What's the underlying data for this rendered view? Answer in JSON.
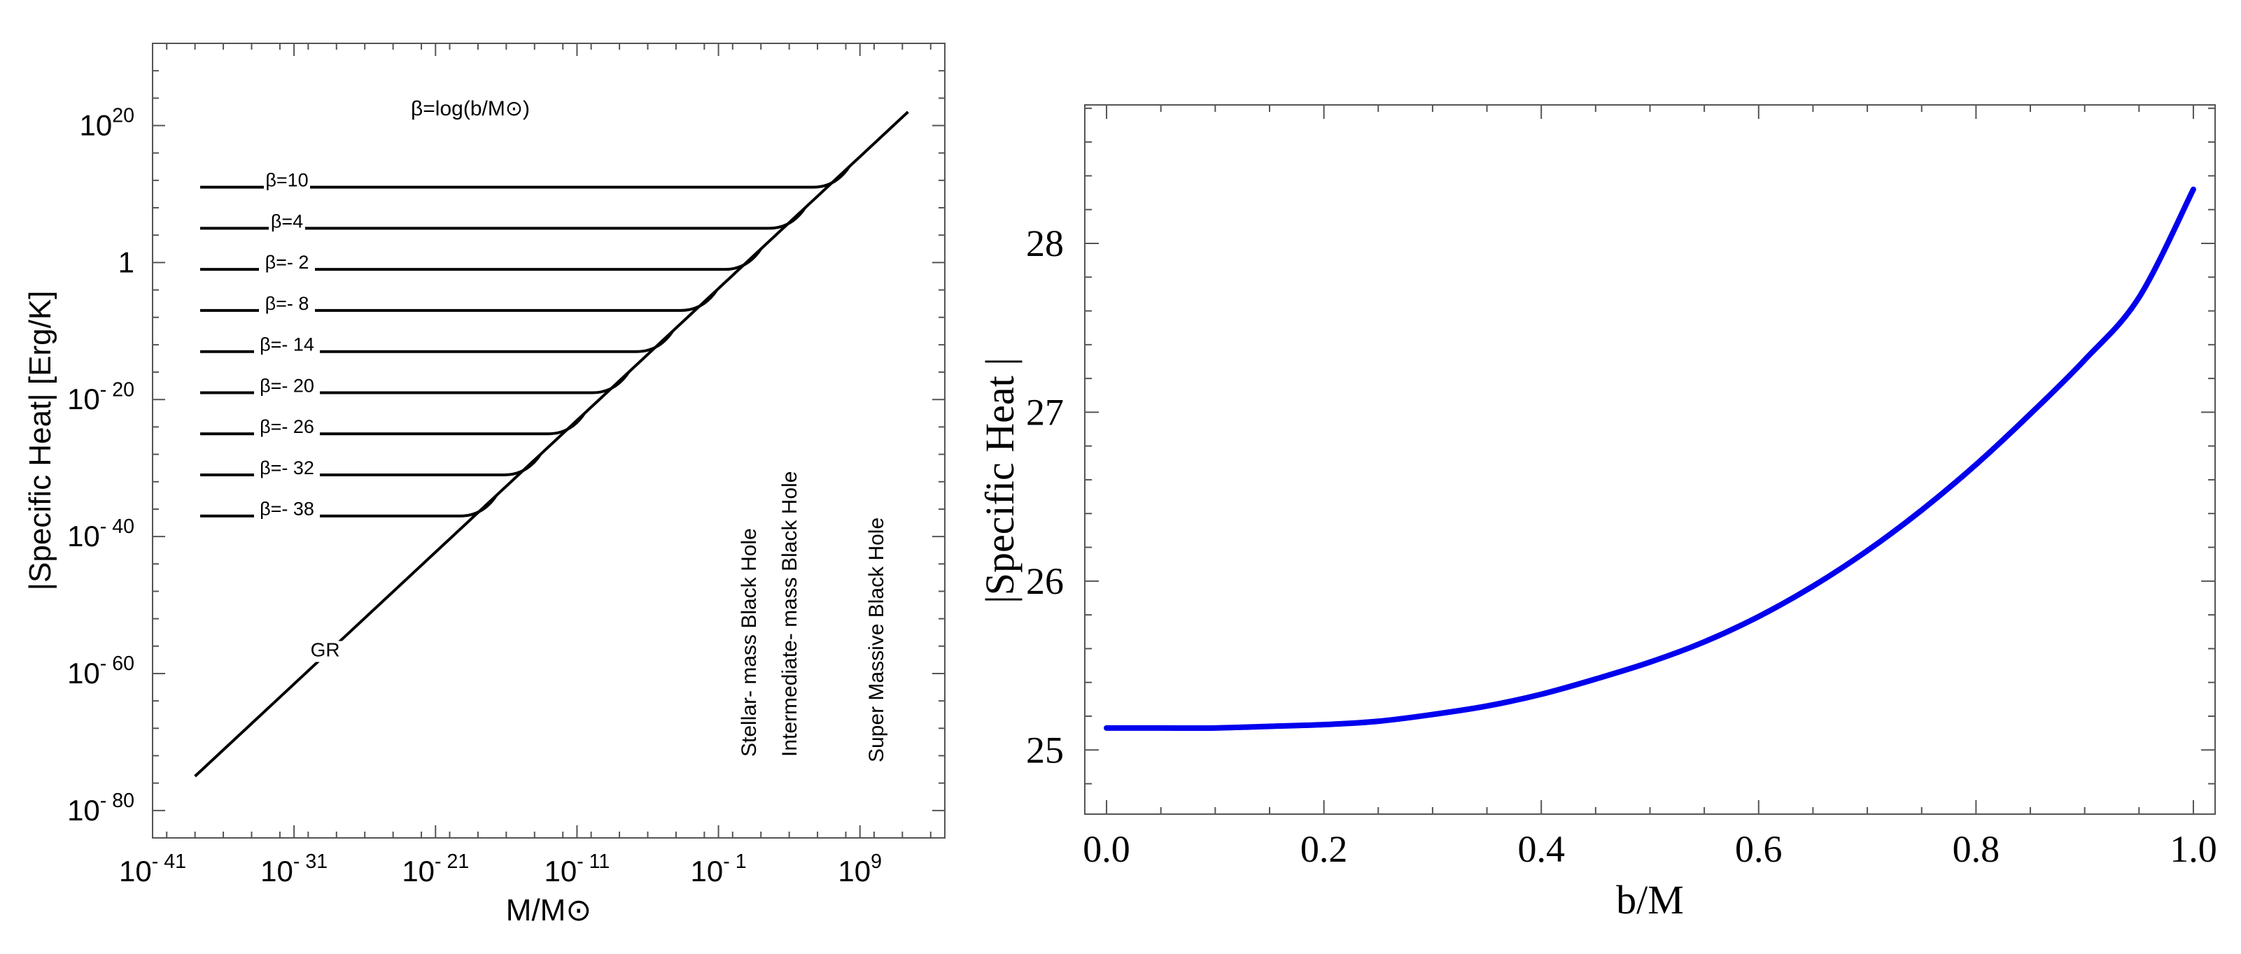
{
  "chart_data": [
    {
      "type": "line",
      "xscale": "log",
      "yscale": "log",
      "xlabel": "M/M⊙",
      "ylabel": "|Specific Heat| [Erg/K]",
      "xlim": [
        1e-41,
        1000000000000000.0
      ],
      "ylim": [
        1e-84,
        1e+32
      ],
      "x_ticks": [
        {
          "exp": -41,
          "label": "10",
          "sup": "- 41"
        },
        {
          "exp": -31,
          "label": "10",
          "sup": "- 31"
        },
        {
          "exp": -21,
          "label": "10",
          "sup": "- 21"
        },
        {
          "exp": -11,
          "label": "10",
          "sup": "- 11"
        },
        {
          "exp": -1,
          "label": "10",
          "sup": "- 1"
        },
        {
          "exp": 9,
          "label": "10",
          "sup": "9"
        }
      ],
      "y_ticks": [
        {
          "exp": 20,
          "label": "10",
          "sup": "20"
        },
        {
          "exp": 0,
          "label": "1",
          "sup": ""
        },
        {
          "exp": -20,
          "label": "10",
          "sup": "- 20"
        },
        {
          "exp": -40,
          "label": "10",
          "sup": "- 40"
        },
        {
          "exp": -60,
          "label": "10",
          "sup": "- 60"
        },
        {
          "exp": -80,
          "label": "10",
          "sup": "- 80"
        }
      ],
      "annotation": "β=log(b/M⊙)",
      "gr_line": {
        "label": "GR",
        "x_exp": [
          -38,
          12.4
        ],
        "y_exp": [
          -75,
          22
        ]
      },
      "series": [
        {
          "name": "β=10",
          "beta": 10,
          "plateau_log_y": 11
        },
        {
          "name": "β=4",
          "beta": 4,
          "plateau_log_y": 5
        },
        {
          "name": "β=- 2",
          "beta": -2,
          "plateau_log_y": -1
        },
        {
          "name": "β=- 8",
          "beta": -8,
          "plateau_log_y": -7
        },
        {
          "name": "β=- 14",
          "beta": -14,
          "plateau_log_y": -13
        },
        {
          "name": "β=- 20",
          "beta": -20,
          "plateau_log_y": -19
        },
        {
          "name": "β=- 26",
          "beta": -26,
          "plateau_log_y": -25
        },
        {
          "name": "β=- 32",
          "beta": -32,
          "plateau_log_y": -31
        },
        {
          "name": "β=- 38",
          "beta": -38,
          "plateau_log_y": -37
        }
      ],
      "region_labels": [
        "Stellar- mass Black Hole",
        "Intermediate- mass Black Hole",
        "Super Massive Black Hole"
      ],
      "line_color": "#000000"
    },
    {
      "type": "line",
      "xlabel": "b/M",
      "ylabel": "|Specific  Heat |",
      "xlim": [
        -0.02,
        1.02
      ],
      "ylim": [
        24.62,
        28.82
      ],
      "x_ticks": [
        "0.0",
        "0.2",
        "0.4",
        "0.6",
        "0.8",
        "1.0"
      ],
      "y_ticks": [
        "25",
        "26",
        "27",
        "28"
      ],
      "series": [
        {
          "color": "#0000ee",
          "x": [
            0.0,
            0.05,
            0.1,
            0.15,
            0.2,
            0.25,
            0.3,
            0.35,
            0.4,
            0.45,
            0.5,
            0.55,
            0.6,
            0.65,
            0.7,
            0.75,
            0.8,
            0.85,
            0.9,
            0.95,
            1.0
          ],
          "y": [
            25.13,
            25.13,
            25.13,
            25.14,
            25.15,
            25.17,
            25.21,
            25.26,
            25.33,
            25.42,
            25.52,
            25.64,
            25.79,
            25.97,
            26.18,
            26.42,
            26.69,
            26.99,
            27.31,
            27.68,
            28.32
          ]
        }
      ]
    }
  ]
}
